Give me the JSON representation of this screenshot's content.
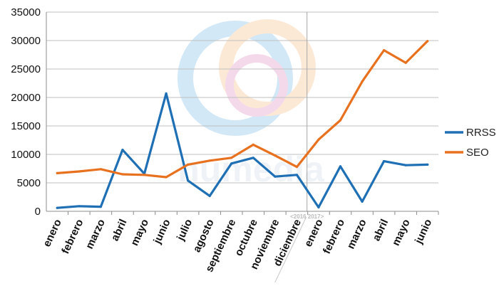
{
  "chart_data": {
    "type": "line",
    "categories": [
      "enero",
      "febrero",
      "marzo",
      "abril",
      "mayo",
      "junio",
      "julio",
      "agosto",
      "septiembre",
      "octubre",
      "noviembre",
      "diciembre",
      "enero",
      "febrero",
      "marzo",
      "abril",
      "mayo",
      "junio"
    ],
    "series": [
      {
        "name": "RRSS",
        "color": "#1f6fb5",
        "values": [
          600,
          900,
          800,
          10800,
          6600,
          20700,
          5400,
          2700,
          8400,
          9400,
          6100,
          6400,
          700,
          7900,
          1700,
          8800,
          8100,
          8200
        ]
      },
      {
        "name": "SEO",
        "color": "#e8711f",
        "values": [
          6700,
          7000,
          7400,
          6500,
          6400,
          6000,
          8200,
          8900,
          9400,
          11700,
          9800,
          7800,
          12600,
          16000,
          22800,
          28300,
          26100,
          29900
        ]
      }
    ],
    "ylim": [
      0,
      35000
    ],
    "yticks": [
      "0",
      "5000",
      "10000",
      "15000",
      "20000",
      "25000",
      "30000",
      "35000"
    ],
    "grid": "horizontal",
    "legend": "right",
    "divider_label": "<2016 2017>",
    "divider_after_index": 11
  }
}
